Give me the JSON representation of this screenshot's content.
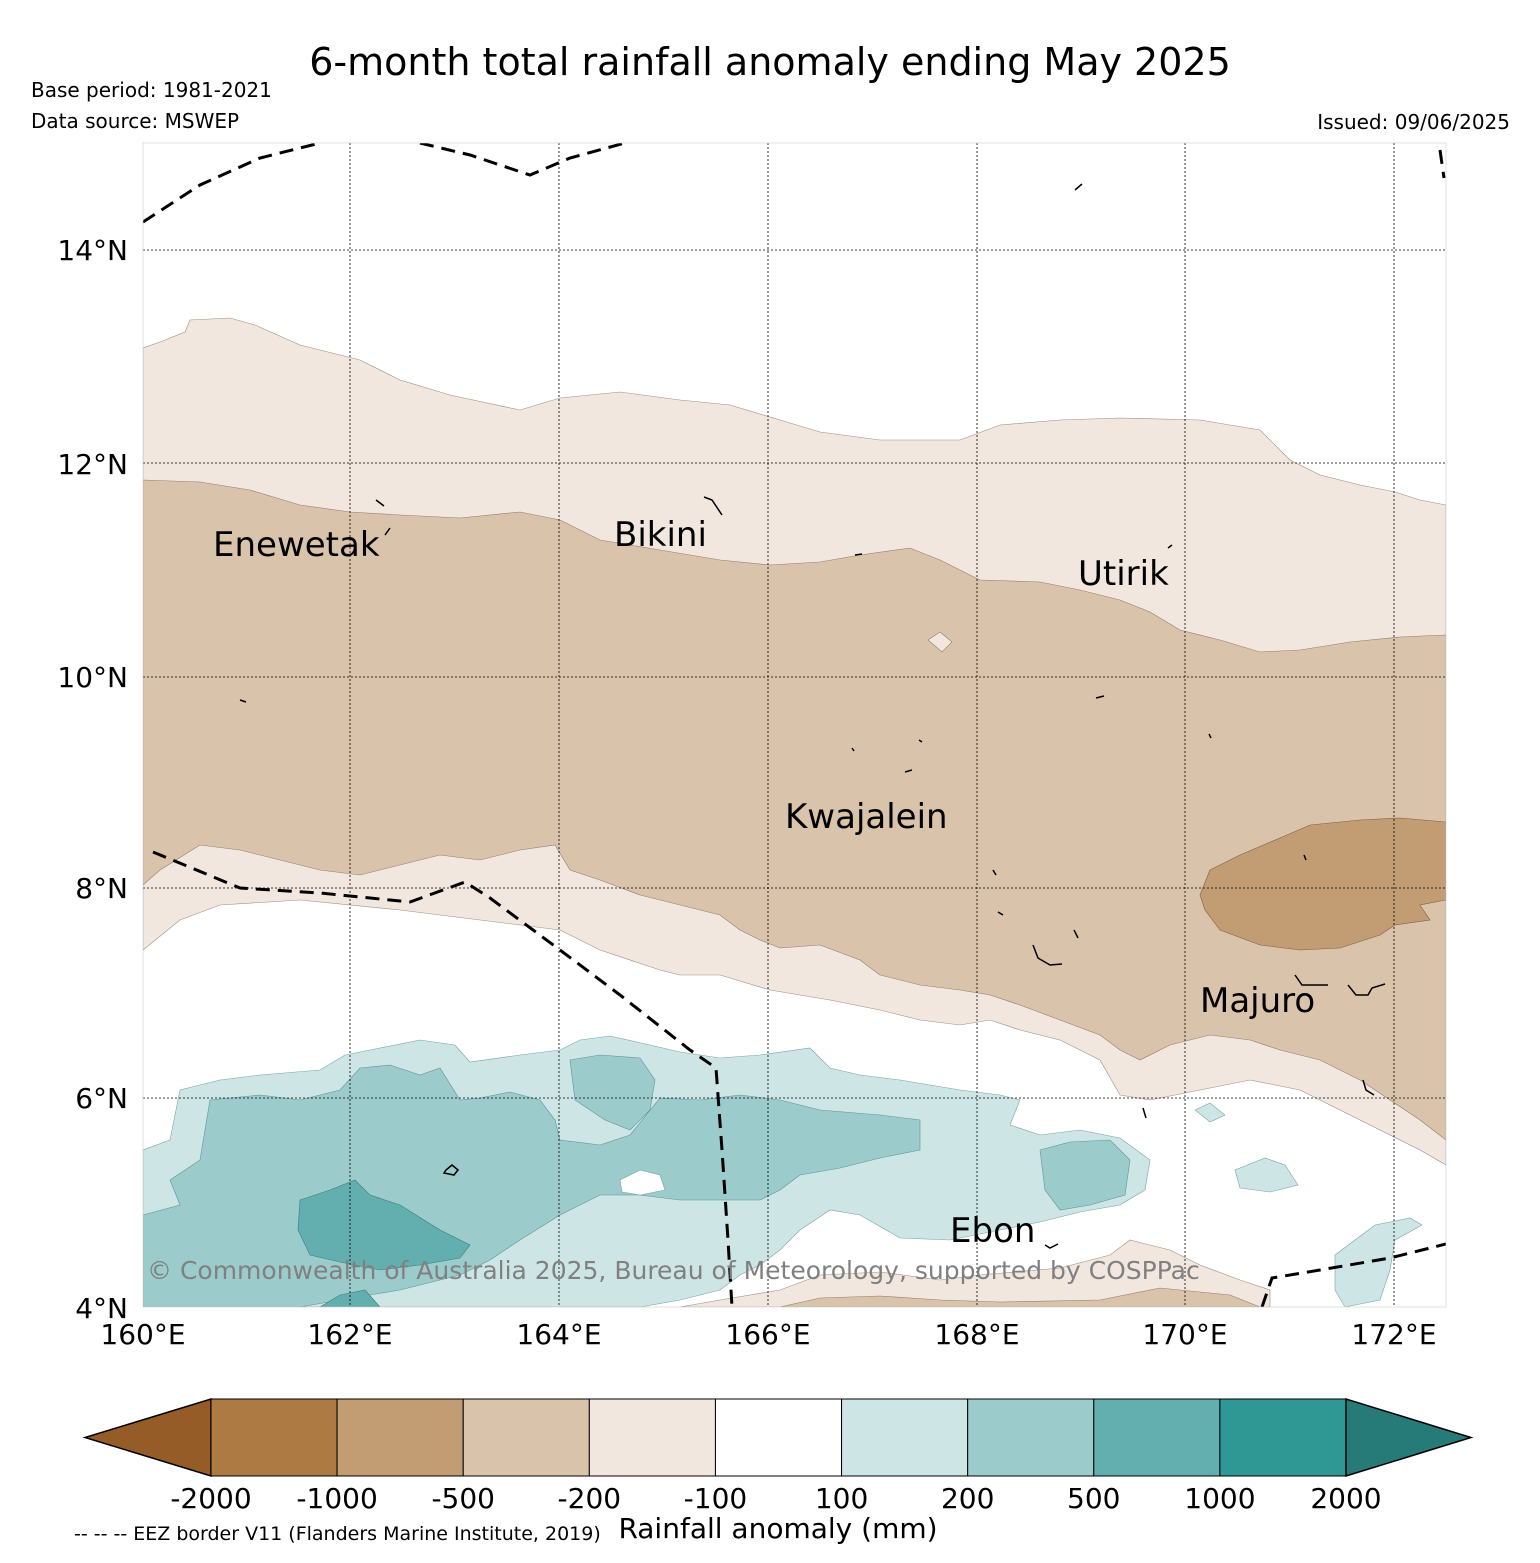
{
  "title": "6-month total rainfall anomaly ending May 2025",
  "base_period": "Base period: 1981-2021",
  "data_source": "Data source: MSWEP",
  "issued": "Issued: 09/06/2025",
  "copyright": "© Commonwealth of Australia 2025, Bureau of Meteorology, supported by COSPPac",
  "map": {
    "lat_range": [
      4,
      15
    ],
    "lon_range": [
      160,
      172.5
    ],
    "lat_ticks": [
      "4°N",
      "6°N",
      "8°N",
      "10°N",
      "12°N",
      "14°N"
    ],
    "lon_ticks": [
      "160°E",
      "162°E",
      "164°E",
      "166°E",
      "168°E",
      "170°E",
      "172°E"
    ],
    "places": [
      {
        "name": "Enewetak"
      },
      {
        "name": "Bikini"
      },
      {
        "name": "Utirik"
      },
      {
        "name": "Kwajalein"
      },
      {
        "name": "Majuro"
      },
      {
        "name": "Ebon"
      }
    ]
  },
  "colorbar": {
    "label": "Rainfall anomaly (mm)",
    "ticks": [
      "-2000",
      "-1000",
      "-500",
      "-200",
      "-100",
      "100",
      "200",
      "500",
      "1000",
      "2000"
    ],
    "colors": [
      "#965c28",
      "#ad7a43",
      "#c29c73",
      "#dac3ab",
      "#f1e7de",
      "#ffffff",
      "#cde5e5",
      "#9ccbcc",
      "#63afaf",
      "#2f9794",
      "#267a78"
    ]
  },
  "eez_note": "-- -- -- EEZ border V11 (Flanders Marine Institute, 2019)"
}
